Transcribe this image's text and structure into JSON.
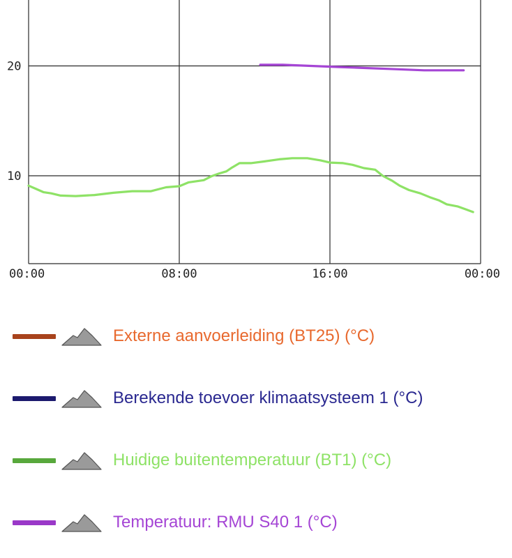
{
  "chart_data": {
    "type": "line",
    "x_ticks": [
      "00:00",
      "08:00",
      "16:00",
      "00:00"
    ],
    "y_ticks": [
      10,
      20
    ],
    "xlim": [
      0,
      24
    ],
    "ylim": [
      2,
      26
    ],
    "grid": true,
    "legend_position": "bottom",
    "series": [
      {
        "name": "Externe aanvoerleiding (BT25) (°C)",
        "swatch_color": "#a8431c",
        "label_color": "#e8692e",
        "points": []
      },
      {
        "name": "Berekende toevoer klimaatsysteem 1 (°C)",
        "swatch_color": "#1c1a6e",
        "label_color": "#2a2890",
        "points": []
      },
      {
        "name": "Huidige buitentemperatuur (BT1) (°C)",
        "swatch_color": "#58a83c",
        "label_color": "#8ee266",
        "line_color": "#8ee266",
        "points": [
          [
            0.0,
            9.1
          ],
          [
            0.4,
            8.8
          ],
          [
            0.8,
            8.5
          ],
          [
            1.2,
            8.4
          ],
          [
            1.7,
            8.2
          ],
          [
            2.5,
            8.15
          ],
          [
            3.5,
            8.25
          ],
          [
            4.5,
            8.45
          ],
          [
            5.5,
            8.6
          ],
          [
            6.5,
            8.6
          ],
          [
            7.3,
            8.95
          ],
          [
            8.0,
            9.05
          ],
          [
            8.5,
            9.4
          ],
          [
            9.3,
            9.6
          ],
          [
            9.7,
            9.95
          ],
          [
            10.1,
            10.2
          ],
          [
            10.5,
            10.4
          ],
          [
            10.8,
            10.75
          ],
          [
            11.2,
            11.15
          ],
          [
            11.8,
            11.15
          ],
          [
            12.5,
            11.3
          ],
          [
            13.3,
            11.5
          ],
          [
            14.0,
            11.6
          ],
          [
            14.8,
            11.6
          ],
          [
            15.5,
            11.4
          ],
          [
            16.0,
            11.2
          ],
          [
            16.7,
            11.15
          ],
          [
            17.2,
            11.0
          ],
          [
            17.8,
            10.7
          ],
          [
            18.4,
            10.55
          ],
          [
            18.8,
            10.0
          ],
          [
            19.3,
            9.55
          ],
          [
            19.7,
            9.1
          ],
          [
            20.2,
            8.7
          ],
          [
            20.8,
            8.4
          ],
          [
            21.3,
            8.05
          ],
          [
            21.8,
            7.75
          ],
          [
            22.2,
            7.4
          ],
          [
            22.8,
            7.2
          ],
          [
            23.2,
            6.95
          ],
          [
            23.6,
            6.7
          ]
        ]
      },
      {
        "name": "Temperatuur: RMU S40 1 (°C)",
        "swatch_color": "#9a38c8",
        "label_color": "#a545d5",
        "line_color": "#a545d5",
        "points": [
          [
            12.3,
            20.1
          ],
          [
            13.5,
            20.1
          ],
          [
            15.0,
            20.0
          ],
          [
            16.5,
            19.9
          ],
          [
            18.0,
            19.8
          ],
          [
            19.5,
            19.7
          ],
          [
            21.0,
            19.6
          ],
          [
            22.3,
            19.6
          ],
          [
            23.1,
            19.6
          ]
        ]
      }
    ]
  }
}
